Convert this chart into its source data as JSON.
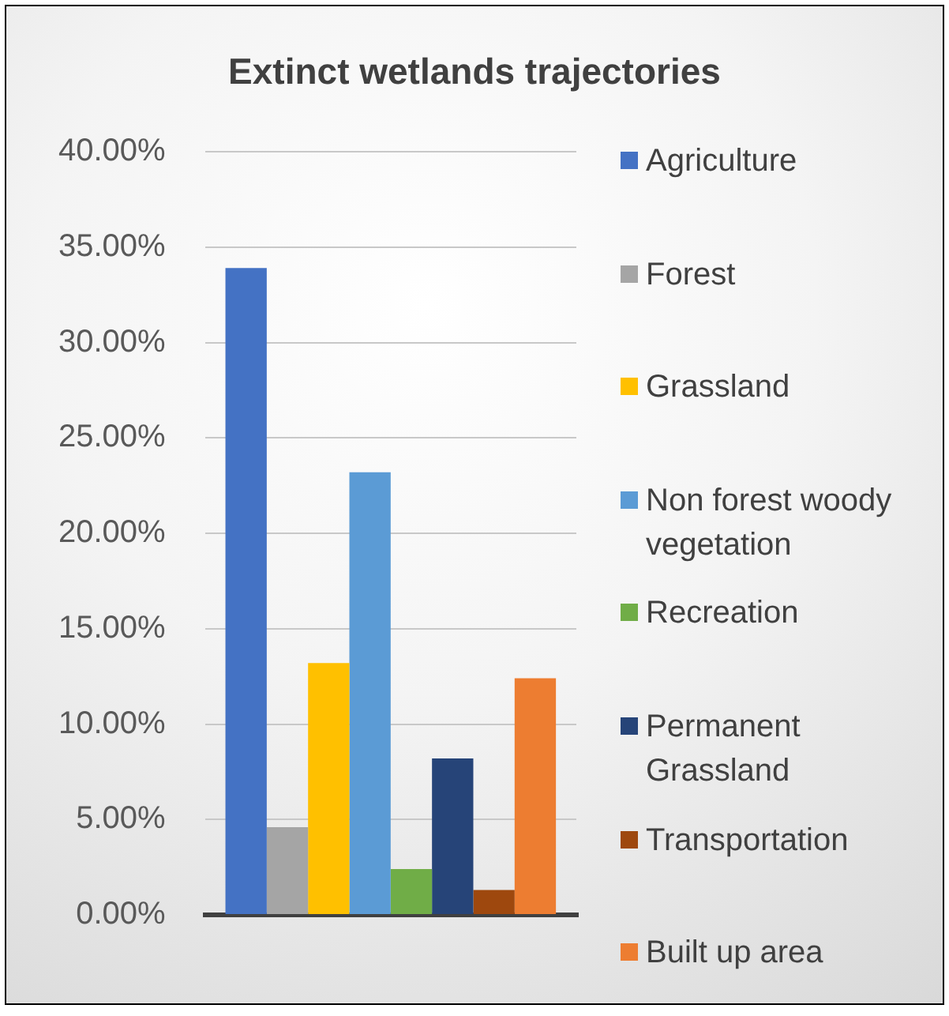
{
  "chart_data": {
    "type": "bar",
    "title": "Extinct wetlands trajectories",
    "categories": [
      null
    ],
    "series": [
      {
        "name": "Agriculture",
        "color": "#4472c4",
        "values": [
          33.9
        ]
      },
      {
        "name": "Forest",
        "color": "#a5a5a5",
        "values": [
          4.6
        ]
      },
      {
        "name": "Grassland",
        "color": "#ffc000",
        "values": [
          13.2
        ]
      },
      {
        "name": "Non forest woody vegetation",
        "color": "#5b9bd5",
        "values": [
          23.2
        ]
      },
      {
        "name": "Recreation",
        "color": "#70ad47",
        "values": [
          2.4
        ]
      },
      {
        "name": "Permanent Grassland",
        "color": "#264478",
        "values": [
          8.2
        ]
      },
      {
        "name": "Transportation",
        "color": "#9e480e",
        "values": [
          1.3
        ]
      },
      {
        "name": "Built up area",
        "color": "#ed7d31",
        "values": [
          12.4
        ]
      }
    ],
    "ylim": [
      0,
      40
    ],
    "yticks": [
      {
        "value": 0,
        "label": "0.00%"
      },
      {
        "value": 5,
        "label": "5.00%"
      },
      {
        "value": 10,
        "label": "10.00%"
      },
      {
        "value": 15,
        "label": "15.00%"
      },
      {
        "value": 20,
        "label": "20.00%"
      },
      {
        "value": 25,
        "label": "25.00%"
      },
      {
        "value": 30,
        "label": "30.00%"
      },
      {
        "value": 35,
        "label": "35.00%"
      },
      {
        "value": 40,
        "label": "40.00%"
      }
    ],
    "grid": "y",
    "legend": "right"
  }
}
